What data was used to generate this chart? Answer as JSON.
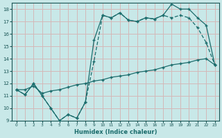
{
  "xlabel": "Humidex (Indice chaleur)",
  "bg_color": "#c8e8e8",
  "grid_color": "#d4b8b8",
  "line_color": "#1a6b6b",
  "xlim": [
    -0.5,
    23.5
  ],
  "ylim": [
    9,
    18.5
  ],
  "yticks": [
    9,
    10,
    11,
    12,
    13,
    14,
    15,
    16,
    17,
    18
  ],
  "xticks": [
    0,
    1,
    2,
    3,
    4,
    5,
    6,
    7,
    8,
    9,
    10,
    11,
    12,
    13,
    14,
    15,
    16,
    17,
    18,
    19,
    20,
    21,
    22,
    23
  ],
  "line_diagonal_x": [
    0,
    1,
    2,
    3,
    4,
    5,
    6,
    7,
    8,
    9,
    10,
    11,
    12,
    13,
    14,
    15,
    16,
    17,
    18,
    19,
    20,
    21,
    22,
    23
  ],
  "line_diagonal_y": [
    11.5,
    11.5,
    11.8,
    11.2,
    11.4,
    11.5,
    11.7,
    11.9,
    12.0,
    12.2,
    12.3,
    12.5,
    12.6,
    12.7,
    12.9,
    13.0,
    13.1,
    13.3,
    13.5,
    13.6,
    13.7,
    13.9,
    14.0,
    13.5
  ],
  "line_jagged_x": [
    0,
    1,
    2,
    3,
    4,
    5,
    6,
    7,
    8,
    9,
    10,
    11,
    12,
    13,
    14,
    15,
    16,
    17,
    18,
    19,
    20,
    21,
    22,
    23
  ],
  "line_jagged_y": [
    11.5,
    11.1,
    12.0,
    11.0,
    10.0,
    9.0,
    9.5,
    9.2,
    10.5,
    13.8,
    17.5,
    17.3,
    17.7,
    17.1,
    17.0,
    17.3,
    17.2,
    17.5,
    17.3,
    17.5,
    17.3,
    16.5,
    15.3,
    13.5
  ],
  "line_upper_x": [
    0,
    1,
    2,
    3,
    4,
    5,
    6,
    7,
    8,
    9,
    10,
    11,
    12,
    13,
    14,
    15,
    16,
    17,
    18,
    19,
    20,
    21,
    22,
    23
  ],
  "line_upper_y": [
    11.5,
    11.1,
    12.0,
    11.0,
    10.0,
    9.0,
    9.5,
    9.2,
    10.5,
    15.5,
    17.5,
    17.3,
    17.7,
    17.1,
    17.0,
    17.3,
    17.2,
    17.5,
    18.4,
    18.0,
    18.0,
    17.3,
    16.7,
    13.5
  ]
}
